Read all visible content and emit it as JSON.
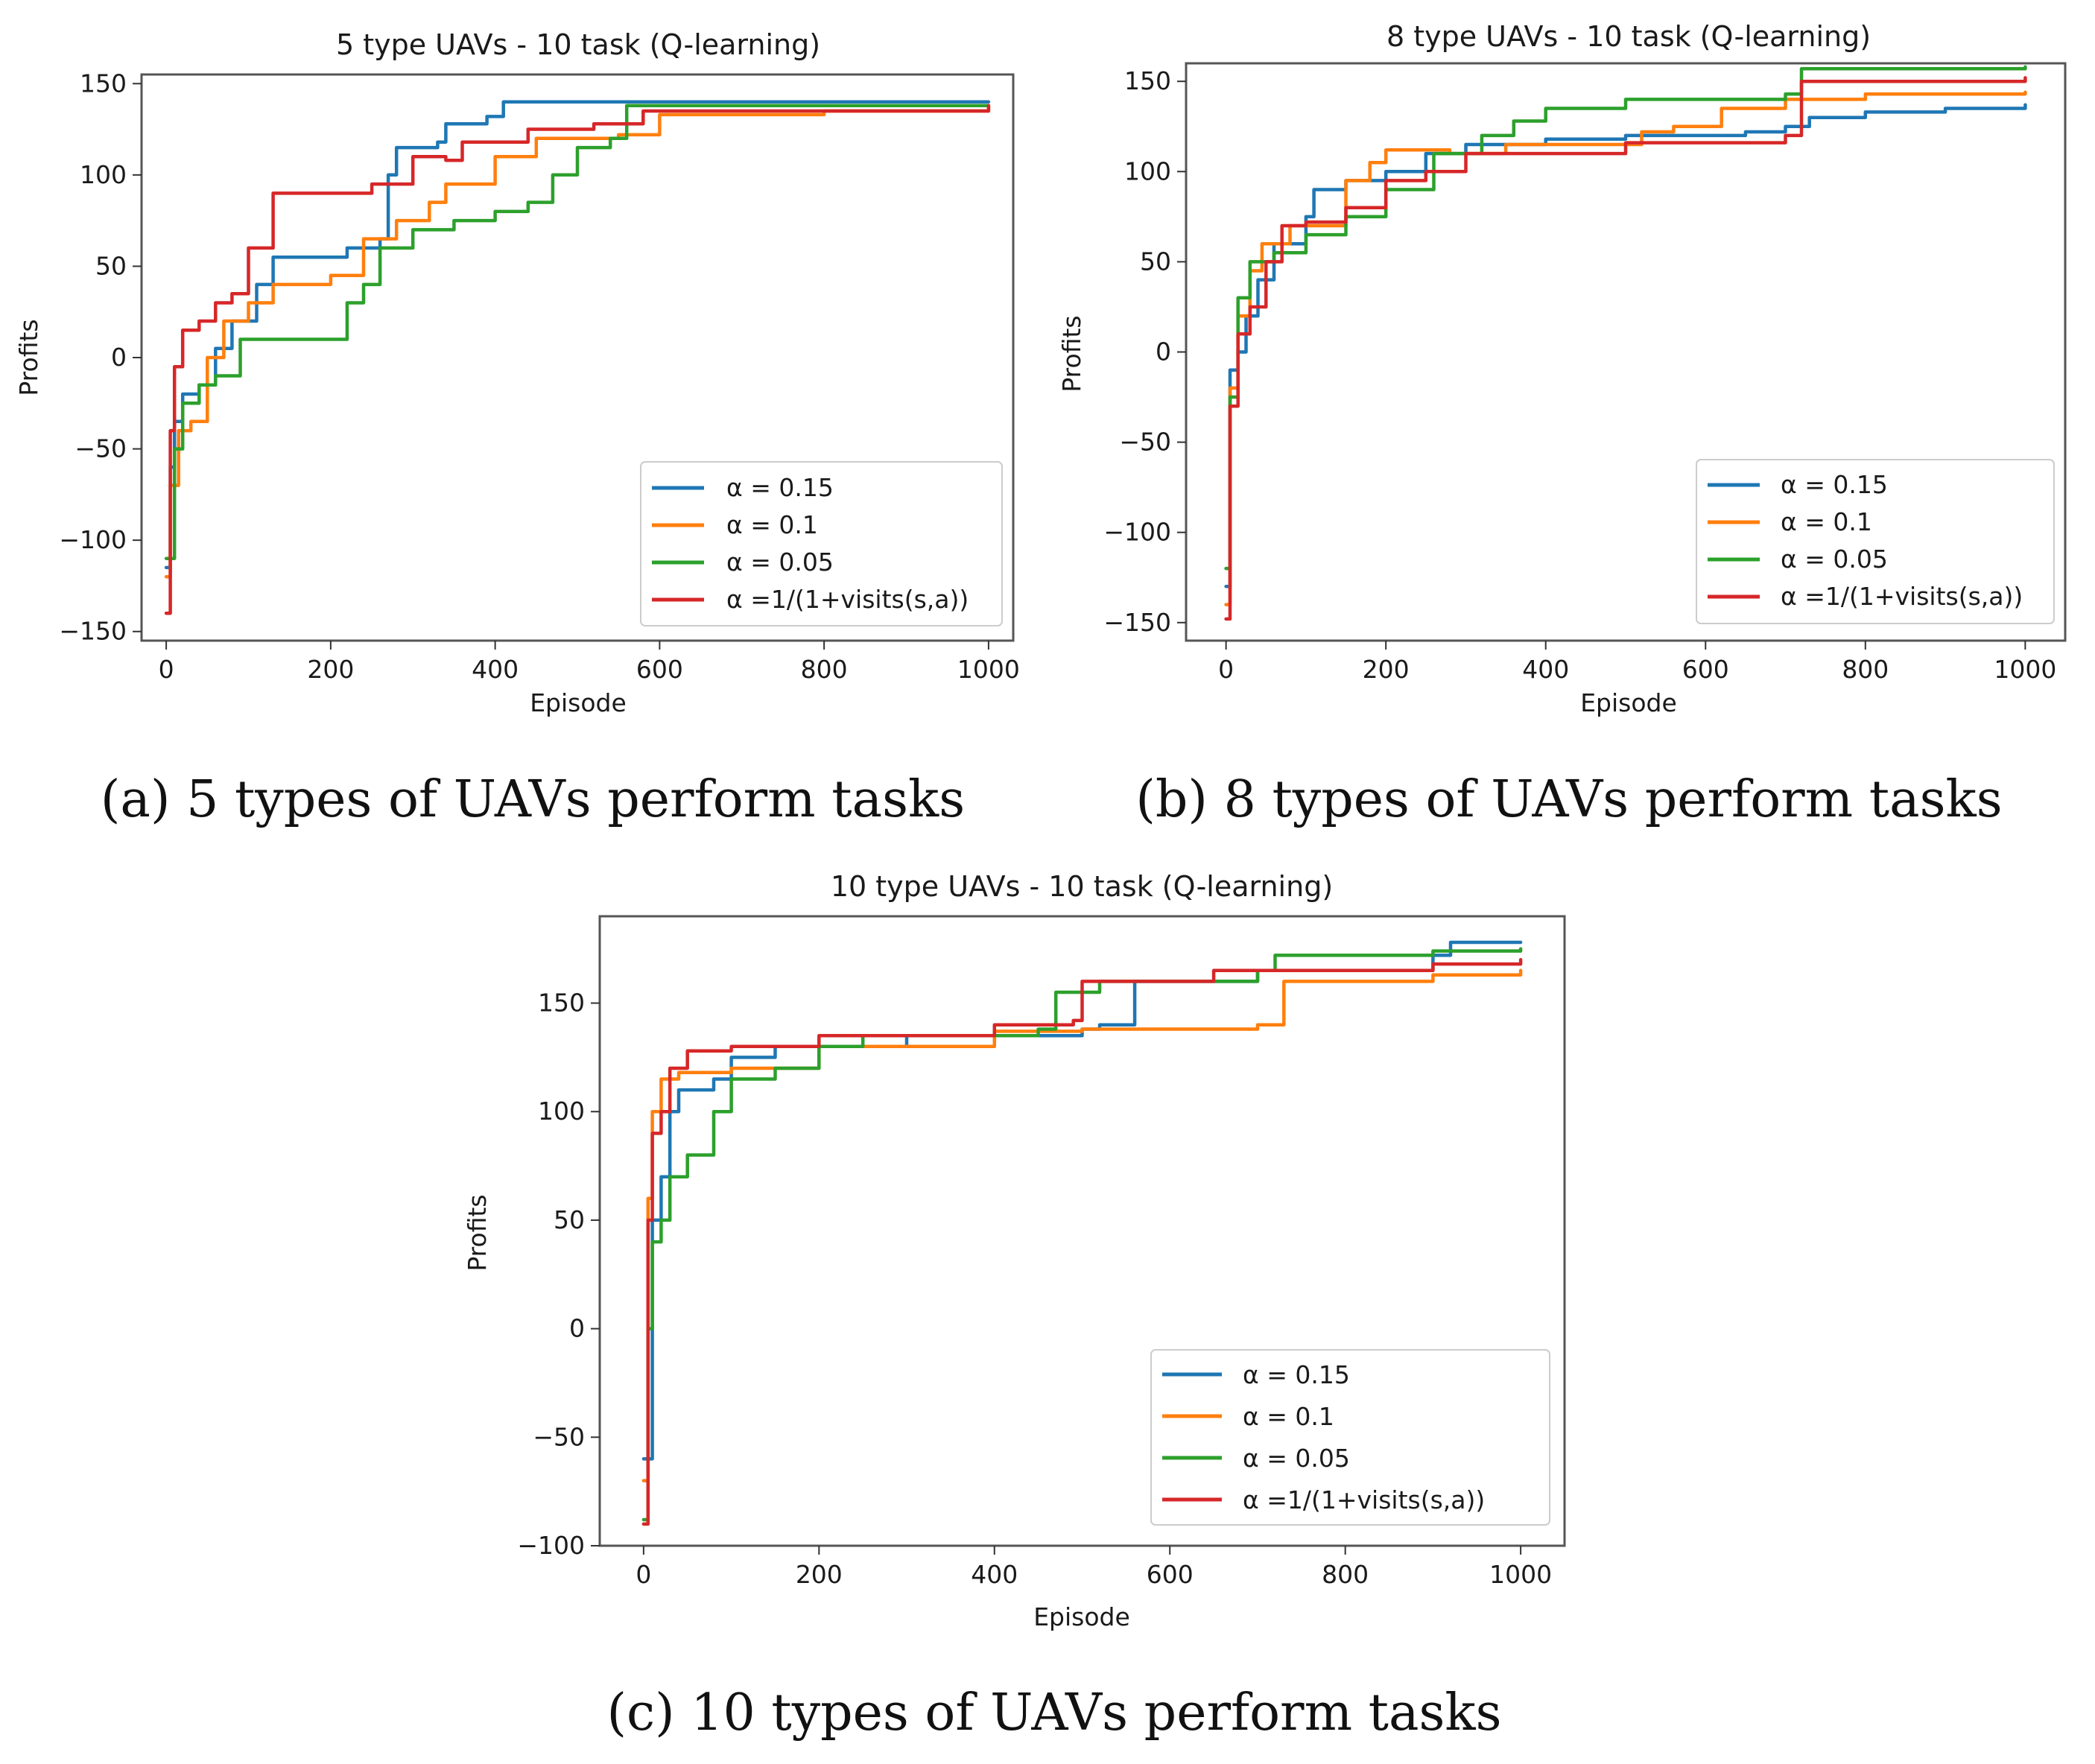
{
  "colors": {
    "s0": "#1f77b4",
    "s1": "#ff7f0e",
    "s2": "#2ca02c",
    "s3": "#d62728"
  },
  "captions": [
    "(a) 5 types of UAVs perform tasks",
    "(b) 8 types of UAVs perform tasks",
    "(c) 10 types of UAVs perform tasks"
  ],
  "chart_data": [
    {
      "type": "line",
      "title": "5 type UAVs - 10 task (Q-learning)",
      "xlabel": "Episode",
      "ylabel": "Profits",
      "xlim": [
        -30,
        1030
      ],
      "ylim": [
        -155,
        155
      ],
      "xticks": [
        0,
        200,
        400,
        600,
        800,
        1000
      ],
      "yticks": [
        -150,
        -100,
        -50,
        0,
        50,
        100,
        150
      ],
      "legend_position": "lower-right",
      "series": [
        {
          "name": "α = 0.15",
          "points": [
            [
              0,
              -115
            ],
            [
              5,
              -60
            ],
            [
              10,
              -35
            ],
            [
              20,
              -20
            ],
            [
              40,
              -15
            ],
            [
              60,
              5
            ],
            [
              80,
              20
            ],
            [
              110,
              40
            ],
            [
              130,
              55
            ],
            [
              200,
              55
            ],
            [
              220,
              60
            ],
            [
              260,
              65
            ],
            [
              270,
              100
            ],
            [
              280,
              115
            ],
            [
              330,
              118
            ],
            [
              340,
              128
            ],
            [
              390,
              132
            ],
            [
              410,
              140
            ],
            [
              1000,
              140
            ]
          ]
        },
        {
          "name": "α = 0.1",
          "points": [
            [
              0,
              -120
            ],
            [
              5,
              -70
            ],
            [
              15,
              -40
            ],
            [
              30,
              -35
            ],
            [
              50,
              0
            ],
            [
              70,
              20
            ],
            [
              100,
              30
            ],
            [
              130,
              40
            ],
            [
              200,
              45
            ],
            [
              240,
              65
            ],
            [
              280,
              75
            ],
            [
              320,
              85
            ],
            [
              340,
              95
            ],
            [
              400,
              110
            ],
            [
              450,
              120
            ],
            [
              550,
              122
            ],
            [
              600,
              133
            ],
            [
              800,
              135
            ],
            [
              1000,
              137
            ]
          ]
        },
        {
          "name": "α = 0.05",
          "points": [
            [
              0,
              -110
            ],
            [
              10,
              -50
            ],
            [
              20,
              -25
            ],
            [
              40,
              -15
            ],
            [
              60,
              -10
            ],
            [
              90,
              10
            ],
            [
              120,
              10
            ],
            [
              160,
              10
            ],
            [
              200,
              10
            ],
            [
              220,
              30
            ],
            [
              240,
              40
            ],
            [
              260,
              60
            ],
            [
              300,
              70
            ],
            [
              350,
              75
            ],
            [
              400,
              80
            ],
            [
              440,
              85
            ],
            [
              470,
              100
            ],
            [
              500,
              115
            ],
            [
              540,
              120
            ],
            [
              560,
              138
            ],
            [
              1000,
              138
            ]
          ]
        },
        {
          "name": "α =1/(1+visits(s,a))",
          "points": [
            [
              0,
              -140
            ],
            [
              5,
              -40
            ],
            [
              10,
              -5
            ],
            [
              20,
              15
            ],
            [
              40,
              20
            ],
            [
              60,
              30
            ],
            [
              80,
              35
            ],
            [
              100,
              60
            ],
            [
              130,
              90
            ],
            [
              250,
              95
            ],
            [
              300,
              110
            ],
            [
              340,
              108
            ],
            [
              360,
              118
            ],
            [
              440,
              125
            ],
            [
              520,
              128
            ],
            [
              580,
              135
            ],
            [
              1000,
              138
            ]
          ]
        }
      ]
    },
    {
      "type": "line",
      "title": "8 type UAVs - 10 task (Q-learning)",
      "xlabel": "Episode",
      "ylabel": "Profits",
      "xlim": [
        -50,
        1050
      ],
      "ylim": [
        -160,
        160
      ],
      "xticks": [
        0,
        200,
        400,
        600,
        800,
        1000
      ],
      "yticks": [
        -150,
        -100,
        -50,
        0,
        50,
        100,
        150
      ],
      "legend_position": "lower-right",
      "series": [
        {
          "name": "α = 0.15",
          "points": [
            [
              0,
              -130
            ],
            [
              5,
              -10
            ],
            [
              15,
              0
            ],
            [
              25,
              20
            ],
            [
              40,
              40
            ],
            [
              60,
              60
            ],
            [
              100,
              75
            ],
            [
              110,
              90
            ],
            [
              150,
              95
            ],
            [
              200,
              100
            ],
            [
              250,
              110
            ],
            [
              300,
              115
            ],
            [
              400,
              118
            ],
            [
              500,
              120
            ],
            [
              650,
              122
            ],
            [
              700,
              125
            ],
            [
              730,
              130
            ],
            [
              800,
              133
            ],
            [
              900,
              135
            ],
            [
              1000,
              137
            ]
          ]
        },
        {
          "name": "α = 0.1",
          "points": [
            [
              0,
              -140
            ],
            [
              5,
              -20
            ],
            [
              15,
              20
            ],
            [
              30,
              45
            ],
            [
              45,
              60
            ],
            [
              80,
              70
            ],
            [
              150,
              95
            ],
            [
              180,
              105
            ],
            [
              200,
              112
            ],
            [
              280,
              110
            ],
            [
              350,
              115
            ],
            [
              500,
              115
            ],
            [
              520,
              122
            ],
            [
              560,
              125
            ],
            [
              620,
              135
            ],
            [
              700,
              140
            ],
            [
              800,
              143
            ],
            [
              1000,
              144
            ]
          ]
        },
        {
          "name": "α = 0.05",
          "points": [
            [
              0,
              -120
            ],
            [
              5,
              -25
            ],
            [
              15,
              30
            ],
            [
              30,
              50
            ],
            [
              60,
              55
            ],
            [
              100,
              65
            ],
            [
              150,
              75
            ],
            [
              200,
              90
            ],
            [
              260,
              110
            ],
            [
              320,
              120
            ],
            [
              360,
              128
            ],
            [
              400,
              135
            ],
            [
              500,
              140
            ],
            [
              700,
              143
            ],
            [
              720,
              157
            ],
            [
              1000,
              158
            ]
          ]
        },
        {
          "name": "α =1/(1+visits(s,a))",
          "points": [
            [
              0,
              -148
            ],
            [
              5,
              -30
            ],
            [
              15,
              10
            ],
            [
              30,
              25
            ],
            [
              50,
              50
            ],
            [
              70,
              70
            ],
            [
              100,
              72
            ],
            [
              150,
              80
            ],
            [
              200,
              95
            ],
            [
              250,
              100
            ],
            [
              300,
              110
            ],
            [
              500,
              116
            ],
            [
              700,
              120
            ],
            [
              720,
              150
            ],
            [
              1000,
              152
            ]
          ]
        }
      ]
    },
    {
      "type": "line",
      "title": "10 type UAVs - 10 task (Q-learning)",
      "xlabel": "Episode",
      "ylabel": "Profits",
      "xlim": [
        -50,
        1050
      ],
      "ylim": [
        -100,
        190
      ],
      "xticks": [
        0,
        200,
        400,
        600,
        800,
        1000
      ],
      "yticks": [
        -100,
        -50,
        0,
        50,
        100,
        150
      ],
      "legend_position": "lower-right",
      "series": [
        {
          "name": "α = 0.15",
          "points": [
            [
              0,
              -60
            ],
            [
              10,
              50
            ],
            [
              20,
              70
            ],
            [
              30,
              100
            ],
            [
              40,
              110
            ],
            [
              80,
              115
            ],
            [
              100,
              125
            ],
            [
              150,
              130
            ],
            [
              300,
              135
            ],
            [
              500,
              138
            ],
            [
              520,
              140
            ],
            [
              560,
              160
            ],
            [
              700,
              165
            ],
            [
              900,
              172
            ],
            [
              920,
              178
            ],
            [
              1000,
              178
            ]
          ]
        },
        {
          "name": "α = 0.1",
          "points": [
            [
              0,
              -70
            ],
            [
              5,
              60
            ],
            [
              10,
              100
            ],
            [
              20,
              115
            ],
            [
              40,
              118
            ],
            [
              100,
              120
            ],
            [
              200,
              130
            ],
            [
              400,
              137
            ],
            [
              500,
              138
            ],
            [
              700,
              140
            ],
            [
              730,
              160
            ],
            [
              900,
              163
            ],
            [
              1000,
              165
            ]
          ]
        },
        {
          "name": "α = 0.05",
          "points": [
            [
              0,
              -88
            ],
            [
              5,
              0
            ],
            [
              10,
              40
            ],
            [
              20,
              50
            ],
            [
              30,
              70
            ],
            [
              50,
              80
            ],
            [
              80,
              100
            ],
            [
              100,
              115
            ],
            [
              150,
              120
            ],
            [
              200,
              130
            ],
            [
              250,
              135
            ],
            [
              450,
              138
            ],
            [
              470,
              155
            ],
            [
              520,
              160
            ],
            [
              700,
              165
            ],
            [
              720,
              172
            ],
            [
              900,
              174
            ],
            [
              1000,
              175
            ]
          ]
        },
        {
          "name": "α =1/(1+visits(s,a))",
          "points": [
            [
              0,
              -90
            ],
            [
              5,
              50
            ],
            [
              10,
              90
            ],
            [
              20,
              100
            ],
            [
              30,
              120
            ],
            [
              50,
              128
            ],
            [
              100,
              130
            ],
            [
              200,
              135
            ],
            [
              400,
              140
            ],
            [
              490,
              142
            ],
            [
              500,
              160
            ],
            [
              650,
              165
            ],
            [
              900,
              168
            ],
            [
              1000,
              170
            ]
          ]
        }
      ]
    }
  ]
}
